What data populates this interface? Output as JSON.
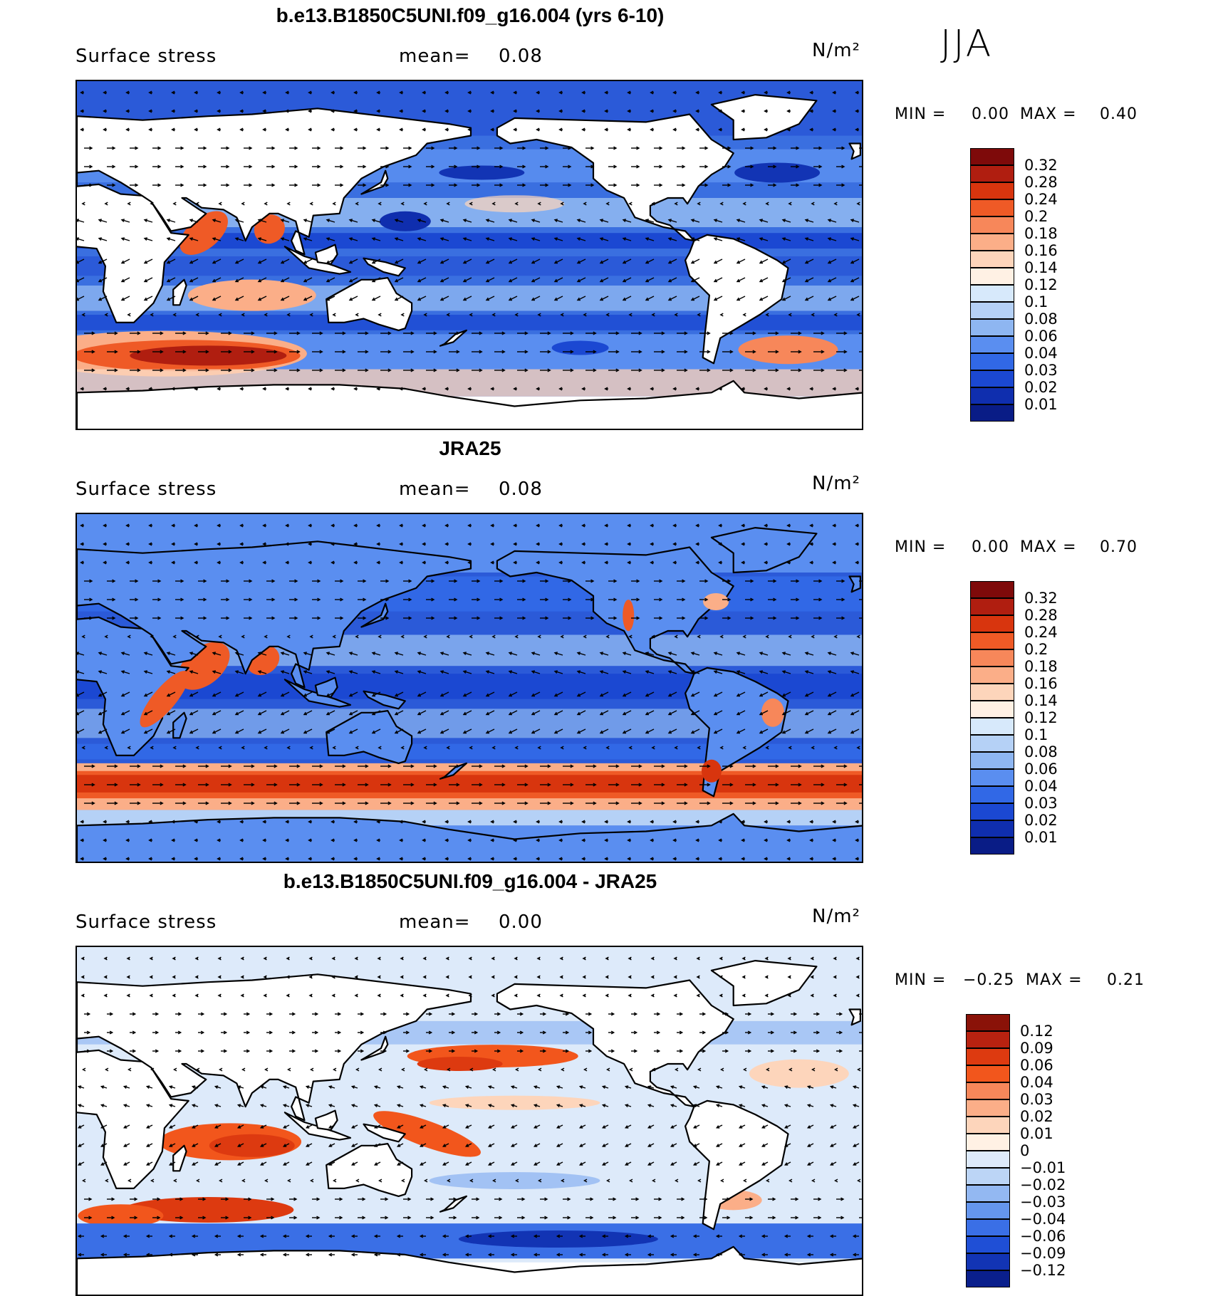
{
  "season": "JJA",
  "panels": [
    {
      "title": "b.e13.B1850C5UNI.f09_g16.004 (yrs 6-10)",
      "variable": "Surface stress",
      "mean_label": "mean=",
      "mean_value": "0.08",
      "units": "N/m²",
      "min_label": "MIN =",
      "min_value": "0.00",
      "max_label": "MAX =",
      "max_value": "0.40",
      "colorbar_ticks": [
        "0.32",
        "0.28",
        "0.24",
        "0.2",
        "0.18",
        "0.16",
        "0.14",
        "0.12",
        "0.1",
        "0.08",
        "0.06",
        "0.04",
        "0.03",
        "0.02",
        "0.01"
      ],
      "colorbar_colors": [
        "#7e0a0a",
        "#b01e10",
        "#d8350e",
        "#ef5a26",
        "#f7875a",
        "#fbae88",
        "#fdd5bb",
        "#fff1e4",
        "#d7e9fb",
        "#b5d1f6",
        "#8eb6f1",
        "#5a8ef0",
        "#3168e6",
        "#1b48d2",
        "#0f2eae",
        "#091c86"
      ]
    },
    {
      "title": "JRA25",
      "variable": "Surface stress",
      "mean_label": "mean=",
      "mean_value": "0.08",
      "units": "N/m²",
      "min_label": "MIN =",
      "min_value": "0.00",
      "max_label": "MAX =",
      "max_value": "0.70",
      "colorbar_ticks": [
        "0.32",
        "0.28",
        "0.24",
        "0.2",
        "0.18",
        "0.16",
        "0.14",
        "0.12",
        "0.1",
        "0.08",
        "0.06",
        "0.04",
        "0.03",
        "0.02",
        "0.01"
      ],
      "colorbar_colors": [
        "#7e0a0a",
        "#b01e10",
        "#d8350e",
        "#ef5a26",
        "#f7875a",
        "#fbae88",
        "#fdd5bb",
        "#fff1e4",
        "#d7e9fb",
        "#b5d1f6",
        "#8eb6f1",
        "#5a8ef0",
        "#3168e6",
        "#1b48d2",
        "#0f2eae",
        "#091c86"
      ]
    },
    {
      "title": "b.e13.B1850C5UNI.f09_g16.004 - JRA25",
      "variable": "Surface stress",
      "mean_label": "mean=",
      "mean_value": "0.00",
      "units": "N/m²",
      "min_label": "MIN =",
      "min_value": "−0.25",
      "max_label": "MAX =",
      "max_value": "0.21",
      "colorbar_ticks": [
        "0.12",
        "0.09",
        "0.06",
        "0.04",
        "0.03",
        "0.02",
        "0.01",
        "0",
        "−0.01",
        "−0.02",
        "−0.03",
        "−0.04",
        "−0.06",
        "−0.09",
        "−0.12"
      ],
      "colorbar_colors": [
        "#8a1208",
        "#b82210",
        "#dd3a10",
        "#f2561c",
        "#f7875a",
        "#fbae88",
        "#fdd5bb",
        "#fff1e4",
        "#ddeafa",
        "#bcd5f6",
        "#93b8f2",
        "#6596ee",
        "#3a6fe6",
        "#1f4fd6",
        "#1234b4",
        "#0a1f8c"
      ]
    }
  ]
}
